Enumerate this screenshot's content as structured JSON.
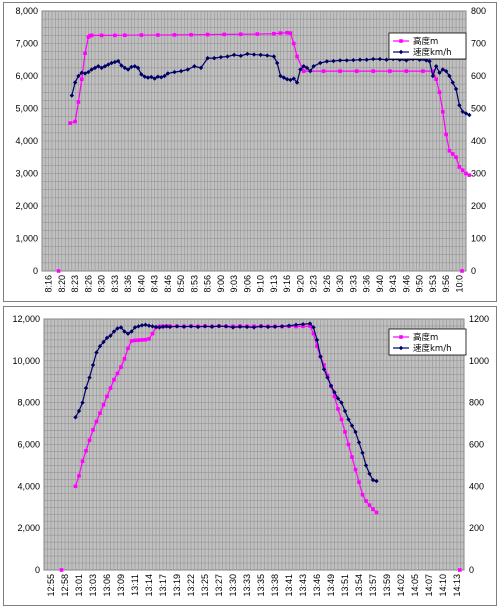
{
  "chart_data": [
    {
      "type": "line",
      "title": "",
      "x_ticks": [
        "8:16",
        "8:20",
        "8:23",
        "8:26",
        "8:30",
        "8:33",
        "8:36",
        "8:40",
        "8:43",
        "8:46",
        "8:50",
        "8:53",
        "8:56",
        "9:00",
        "9:03",
        "9:06",
        "9:10",
        "9:13",
        "9:16",
        "9:20",
        "9:23",
        "9:26",
        "9:30",
        "9:33",
        "9:36",
        "9:40",
        "9:43",
        "9:46",
        "9:50",
        "9:53",
        "9:56",
        "10:0"
      ],
      "y_left": {
        "min": 0,
        "max": 8000,
        "ticks": [
          "0",
          "1,000",
          "2,000",
          "3,000",
          "4,000",
          "5,000",
          "6,000",
          "7,000",
          "8,000"
        ]
      },
      "y_right": {
        "min": 0,
        "max": 800,
        "ticks": [
          "0",
          "100",
          "200",
          "300",
          "400",
          "500",
          "600",
          "700",
          "800"
        ]
      },
      "grid": true,
      "legend_position": "top-right",
      "series": [
        {
          "name": "高度m",
          "axis": "left",
          "color": "#ff00ff",
          "marker": "square",
          "x": [
            8.5,
            10,
            11,
            12,
            13,
            14,
            14.5,
            15,
            18,
            22,
            25,
            30,
            35,
            40,
            45,
            50,
            55,
            60,
            65,
            70,
            72,
            74,
            75,
            76,
            77,
            79,
            85,
            90,
            95,
            100,
            105,
            110,
            115,
            118,
            119,
            120,
            121,
            122,
            123,
            124,
            125,
            126,
            127,
            128,
            129
          ],
          "y": [
            4550,
            4600,
            5200,
            5900,
            6700,
            7200,
            7240,
            7250,
            7250,
            7250,
            7255,
            7260,
            7260,
            7265,
            7270,
            7275,
            7280,
            7285,
            7290,
            7300,
            7320,
            7330,
            7320,
            7000,
            6600,
            6150,
            6150,
            6150,
            6150,
            6150,
            6150,
            6150,
            6150,
            6150,
            5900,
            5500,
            4900,
            4200,
            3700,
            3600,
            3500,
            3200,
            3100,
            3000,
            2950
          ]
        },
        {
          "name": "速度km/h",
          "axis": "right",
          "color": "#000066",
          "marker": "diamond",
          "x": [
            9,
            10,
            11,
            12,
            13,
            14,
            15,
            16,
            17,
            18,
            19,
            20,
            21,
            22,
            23,
            24,
            25,
            26,
            27,
            28,
            29,
            30,
            31,
            32,
            33,
            34,
            35,
            36,
            37,
            38,
            40,
            42,
            44,
            46,
            48,
            50,
            52,
            54,
            56,
            58,
            60,
            62,
            64,
            66,
            68,
            70,
            71,
            72,
            73,
            74,
            75,
            76,
            77,
            78,
            79,
            80,
            81,
            82,
            84,
            86,
            88,
            90,
            92,
            94,
            96,
            98,
            100,
            102,
            104,
            106,
            108,
            110,
            112,
            114,
            116,
            117,
            118,
            119,
            120,
            121,
            122,
            123,
            124,
            125,
            126,
            127,
            128,
            129
          ],
          "y": [
            540,
            580,
            600,
            610,
            608,
            612,
            620,
            625,
            630,
            625,
            630,
            635,
            640,
            643,
            646,
            632,
            625,
            620,
            628,
            630,
            625,
            605,
            598,
            595,
            597,
            592,
            598,
            596,
            600,
            608,
            612,
            615,
            620,
            630,
            625,
            655,
            655,
            658,
            660,
            665,
            662,
            668,
            666,
            665,
            663,
            660,
            640,
            600,
            595,
            590,
            588,
            592,
            580,
            620,
            630,
            625,
            615,
            630,
            640,
            645,
            646,
            648,
            648,
            649,
            650,
            650,
            652,
            652,
            650,
            652,
            650,
            648,
            652,
            650,
            648,
            645,
            600,
            630,
            610,
            620,
            615,
            600,
            580,
            560,
            510,
            490,
            485,
            480
          ]
        }
      ]
    },
    {
      "type": "line",
      "title": "",
      "x_ticks": [
        "12:55",
        "12:58",
        "13:01",
        "13:03",
        "13:06",
        "13:09",
        "13:11",
        "13:14",
        "13:17",
        "13:19",
        "13:22",
        "13:25",
        "13:27",
        "13:30",
        "13:33",
        "13:35",
        "13:38",
        "13:41",
        "13:43",
        "13:46",
        "13:49",
        "13:51",
        "13:54",
        "13:57",
        "13:59",
        "14:02",
        "14:05",
        "14:07",
        "14:10",
        "14:13"
      ],
      "y_left": {
        "min": 0,
        "max": 12000,
        "ticks": [
          "0",
          "2,000",
          "4,000",
          "6,000",
          "8,000",
          "10,000",
          "12,000"
        ]
      },
      "y_right": {
        "min": 0,
        "max": 1200,
        "ticks": [
          "0",
          "200",
          "400",
          "600",
          "800",
          "1000",
          "1200"
        ]
      },
      "grid": true,
      "legend_position": "top-right",
      "series": [
        {
          "name": "高度m",
          "axis": "left",
          "color": "#ff00ff",
          "marker": "square",
          "x": [
            9,
            10,
            11,
            12,
            13,
            14,
            15,
            16,
            17,
            18,
            19,
            20,
            21,
            22,
            23,
            24,
            25,
            26,
            27,
            28,
            29,
            30,
            31,
            32,
            33,
            34,
            35,
            36,
            38,
            40,
            42,
            44,
            46,
            48,
            50,
            52,
            54,
            56,
            58,
            60,
            62,
            64,
            66,
            68,
            70,
            72,
            74,
            76,
            77,
            78,
            79,
            80,
            81,
            82,
            83,
            84,
            85,
            86,
            87,
            88,
            89,
            90,
            91,
            92,
            93,
            94,
            95
          ],
          "y": [
            4000,
            4500,
            5200,
            5700,
            6200,
            6700,
            7100,
            7500,
            7900,
            8300,
            8700,
            9100,
            9400,
            9700,
            10100,
            10600,
            10950,
            10980,
            10990,
            11000,
            11010,
            11050,
            11300,
            11600,
            11650,
            11650,
            11650,
            11660,
            11650,
            11650,
            11660,
            11650,
            11660,
            11650,
            11660,
            11650,
            11650,
            11660,
            11650,
            11650,
            11660,
            11650,
            11650,
            11640,
            11650,
            11640,
            11650,
            11660,
            11300,
            10700,
            10200,
            9800,
            9300,
            8800,
            8300,
            7700,
            7200,
            6600,
            6000,
            5400,
            4800,
            4200,
            3600,
            3300,
            3100,
            2900,
            2750
          ]
        },
        {
          "name": "速度km/h",
          "axis": "right",
          "color": "#000066",
          "marker": "diamond",
          "x": [
            9,
            10,
            11,
            12,
            13,
            14,
            15,
            16,
            17,
            18,
            19,
            20,
            21,
            22,
            23,
            24,
            25,
            26,
            27,
            28,
            29,
            30,
            31,
            32,
            33,
            34,
            35,
            36,
            38,
            40,
            42,
            44,
            46,
            48,
            50,
            52,
            54,
            56,
            58,
            60,
            62,
            64,
            66,
            68,
            70,
            72,
            74,
            76,
            77,
            78,
            79,
            80,
            81,
            82,
            83,
            84,
            85,
            86,
            87,
            88,
            89,
            90,
            91,
            92,
            93,
            94,
            95
          ],
          "y": [
            730,
            760,
            800,
            870,
            920,
            980,
            1040,
            1070,
            1090,
            1110,
            1120,
            1140,
            1155,
            1160,
            1140,
            1130,
            1140,
            1160,
            1165,
            1170,
            1172,
            1168,
            1165,
            1162,
            1160,
            1163,
            1165,
            1162,
            1165,
            1163,
            1165,
            1162,
            1165,
            1163,
            1166,
            1165,
            1160,
            1163,
            1162,
            1160,
            1165,
            1162,
            1163,
            1165,
            1168,
            1172,
            1175,
            1178,
            1160,
            1100,
            1020,
            960,
            920,
            880,
            850,
            820,
            800,
            760,
            720,
            690,
            660,
            610,
            560,
            500,
            460,
            430,
            425
          ]
        }
      ]
    }
  ]
}
